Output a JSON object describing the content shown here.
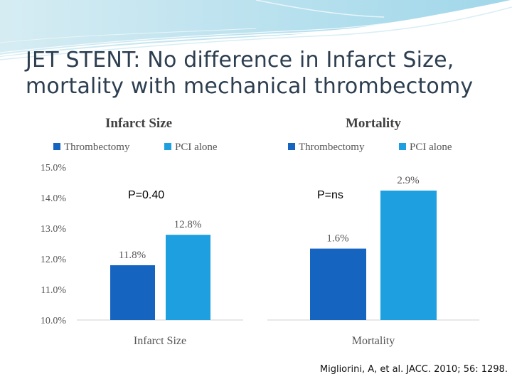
{
  "slide": {
    "title_line1": "JET STENT: No difference in Infarct Size,",
    "title_line2": "mortality with mechanical thrombectomy",
    "citation": "Migliorini, A, et al. JACC. 2010; 56: 1298."
  },
  "colors": {
    "thrombectomy": "#1565c0",
    "pci_alone": "#1e9fe0",
    "title": "#2c3e50"
  },
  "chart_data": [
    {
      "type": "bar",
      "title": "Infarct Size",
      "legend": [
        "Thrombectomy",
        "PCI alone"
      ],
      "categories": [
        "Infarct Size"
      ],
      "xlabel": "Infarct Size",
      "ylabel": "",
      "ylim": [
        10.0,
        15.0
      ],
      "yticks": [
        "10.0%",
        "11.0%",
        "12.0%",
        "13.0%",
        "14.0%",
        "15.0%"
      ],
      "series": [
        {
          "name": "Thrombectomy",
          "values": [
            11.8
          ],
          "label": "11.8%"
        },
        {
          "name": "PCI alone",
          "values": [
            12.8
          ],
          "label": "12.8%"
        }
      ],
      "annotation": "P=0.40"
    },
    {
      "type": "bar",
      "title": "Mortality",
      "legend": [
        "Thrombectomy",
        "PCI alone"
      ],
      "categories": [
        "Mortality"
      ],
      "xlabel": "Mortality",
      "ylabel": "",
      "series": [
        {
          "name": "Thrombectomy",
          "values": [
            1.6
          ],
          "label": "1.6%"
        },
        {
          "name": "PCI alone",
          "values": [
            2.9
          ],
          "label": "2.9%"
        }
      ],
      "annotation": "P=ns"
    }
  ]
}
